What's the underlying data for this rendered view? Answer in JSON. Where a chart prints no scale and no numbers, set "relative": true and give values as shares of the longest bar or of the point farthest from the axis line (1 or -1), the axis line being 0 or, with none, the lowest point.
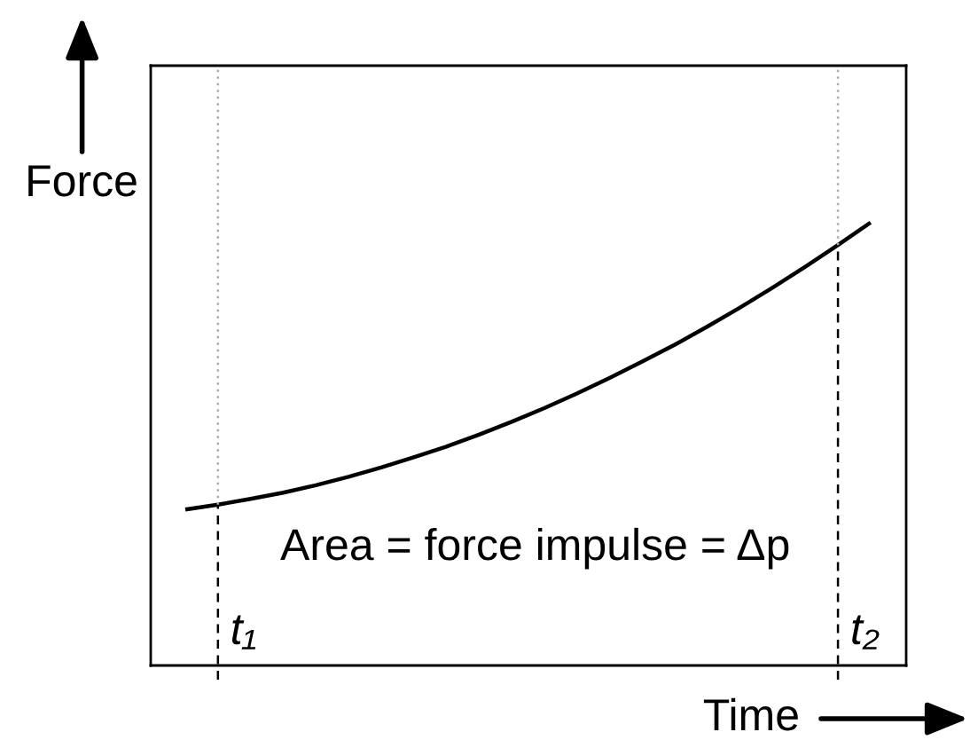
{
  "chart_data": {
    "type": "line",
    "xlabel": "Time",
    "ylabel": "Force",
    "annotations": [
      "Area = force impulse = Δp",
      "t₁",
      "t₂"
    ],
    "categories": [
      null,
      null,
      null,
      null,
      null,
      null,
      null,
      null,
      null,
      null,
      null,
      null,
      null,
      null,
      null,
      null,
      null,
      null,
      null,
      null,
      null,
      null
    ],
    "series": [
      {
        "color": "#000000",
        "values": [
          0.352,
          0.363,
          0.376,
          0.39,
          0.407,
          0.426,
          0.447,
          0.47,
          0.494,
          0.521,
          0.55,
          0.581,
          0.614,
          0.649,
          0.686,
          0.724,
          0.765,
          0.808,
          0.853,
          0.9,
          0.949,
          1.0
        ]
      }
    ],
    "relative": true,
    "marker": "none",
    "line_style": "solid"
  }
}
